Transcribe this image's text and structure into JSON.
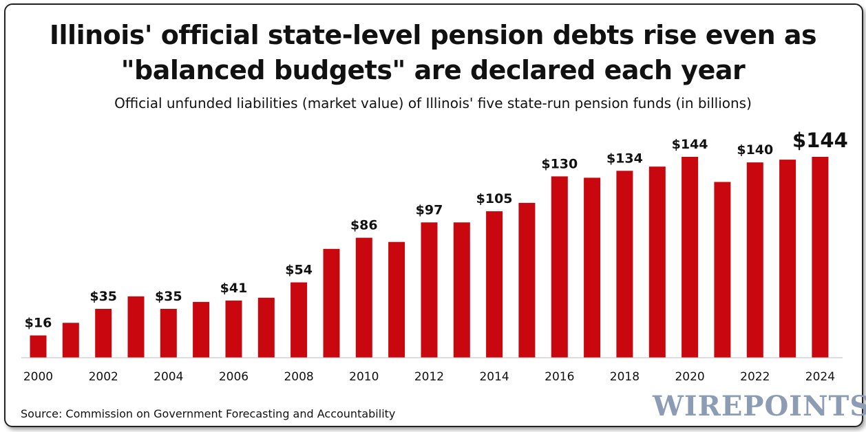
{
  "colors": {
    "bar": "#c8070e",
    "text": "#111111",
    "brand": "#8c9cb4"
  },
  "source": "Source: Commission on Government Forecasting and Accountability",
  "brand": "WIREPOINTS",
  "chart_data": {
    "type": "bar",
    "title_lines": [
      "Illinois' official state-level pension debts rise even as",
      "\"balanced budgets\" are declared each year"
    ],
    "subtitle": "Official unfunded liabilities (market value) of Illinois' five state-run pension funds (in billions)",
    "xlabel": "",
    "ylabel": "",
    "ylim": [
      0,
      150
    ],
    "grid": false,
    "categories": [
      "2000",
      "2001",
      "2002",
      "2003",
      "2004",
      "2005",
      "2006",
      "2007",
      "2008",
      "2009",
      "2010",
      "2011",
      "2012",
      "2013",
      "2014",
      "2015",
      "2016",
      "2017",
      "2018",
      "2019",
      "2020",
      "2021",
      "2022",
      "2023",
      "2024"
    ],
    "tick_labels": [
      "2000",
      "",
      "2002",
      "",
      "2004",
      "",
      "2006",
      "",
      "2008",
      "",
      "2010",
      "",
      "2012",
      "",
      "2014",
      "",
      "2016",
      "",
      "2018",
      "",
      "2020",
      "",
      "2022",
      "",
      "2024"
    ],
    "values": [
      16,
      25,
      35,
      44,
      35,
      40,
      41,
      43,
      54,
      78,
      86,
      83,
      97,
      97,
      105,
      111,
      130,
      129,
      134,
      137,
      144,
      126,
      140,
      142,
      144
    ],
    "data_labels": [
      "$16",
      "",
      "$35",
      "",
      "$35",
      "",
      "$41",
      "",
      "$54",
      "",
      "$86",
      "",
      "$97",
      "",
      "$105",
      "",
      "$130",
      "",
      "$134",
      "",
      "$144",
      "",
      "$140",
      "",
      "$144"
    ],
    "highlight_label_index": 24
  }
}
